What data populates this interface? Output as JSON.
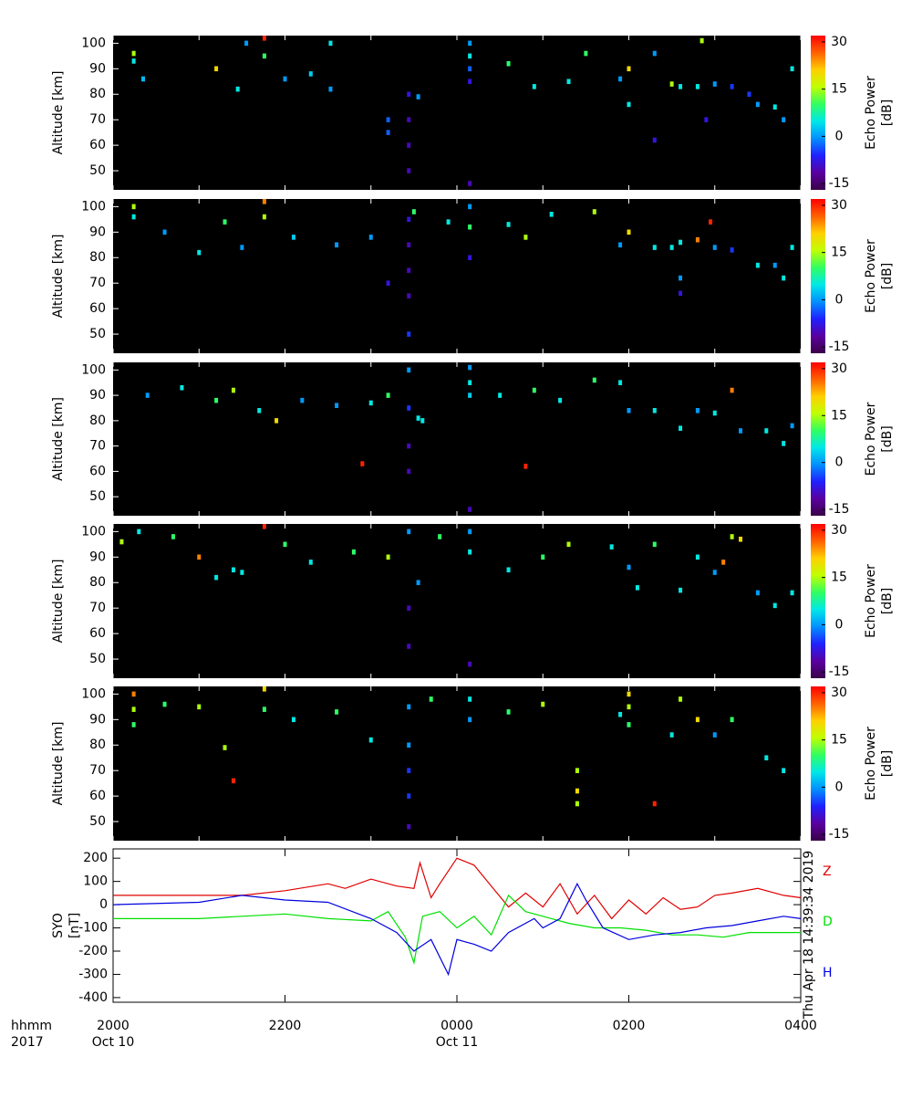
{
  "chart_data": [
    {
      "type": "heatmap",
      "ylabel": "Altitude [km]",
      "xlim": [
        20,
        28
      ],
      "xticks": [
        20,
        21,
        22,
        23,
        24,
        25,
        26,
        27,
        28
      ],
      "ylim": [
        42.5,
        103
      ],
      "yticks": [
        50,
        60,
        70,
        80,
        90,
        100
      ],
      "colorbar": {
        "label": [
          "Echo Power",
          "[dB]"
        ],
        "zlim": [
          -17,
          32
        ],
        "ticks": [
          30,
          15,
          0,
          -15
        ],
        "colormap": [
          "#3a0048",
          "#5a00a0",
          "#2020ff",
          "#0090ff",
          "#00e8e8",
          "#30ff60",
          "#c0ff00",
          "#ffd000",
          "#ff6000",
          "#ff0000"
        ]
      },
      "time": [
        20.24,
        20.24,
        20.35,
        21.2,
        21.55,
        21.76,
        21.76,
        21.45,
        22.0,
        22.3,
        22.53,
        22.53,
        23.44,
        23.44,
        23.44,
        23.44,
        23.2,
        23.2,
        23.55,
        24.15,
        24.15,
        24.15,
        24.15,
        24.15,
        24.6,
        24.9,
        25.5,
        25.3,
        25.9,
        26.0,
        26.0,
        26.5,
        26.6,
        26.8,
        27.0,
        27.2,
        27.5,
        27.7,
        27.8,
        26.9,
        26.3,
        27.9,
        26.85,
        26.3,
        27.4
      ],
      "altitude": [
        96,
        93,
        86,
        90,
        100,
        102,
        95,
        82,
        86,
        88,
        100,
        82,
        80,
        70,
        60,
        50,
        70,
        65,
        79,
        100,
        95,
        90,
        85,
        45,
        92,
        83,
        96,
        85,
        86,
        90,
        76,
        84,
        83,
        83,
        84,
        83,
        76,
        75,
        70,
        70,
        62,
        90,
        101,
        96,
        80
      ],
      "power": [
        15,
        5,
        2,
        20,
        0,
        30,
        10,
        5,
        0,
        3,
        5,
        0,
        -8,
        -10,
        -10,
        -10,
        -3,
        -3,
        0,
        0,
        5,
        -3,
        -8,
        -10,
        10,
        5,
        10,
        5,
        0,
        20,
        5,
        15,
        5,
        5,
        0,
        -5,
        0,
        5,
        0,
        -8,
        -8,
        5,
        15,
        0,
        -5
      ]
    },
    {
      "type": "heatmap",
      "ylabel": "Altitude [km]",
      "xlim": [
        20,
        28
      ],
      "xticks": [
        20,
        21,
        22,
        23,
        24,
        25,
        26,
        27,
        28
      ],
      "ylim": [
        42.5,
        103
      ],
      "yticks": [
        50,
        60,
        70,
        80,
        90,
        100
      ],
      "colorbar": {
        "label": [
          "Echo Power",
          "[dB]"
        ],
        "zlim": [
          -17,
          32
        ],
        "ticks": [
          30,
          15,
          0,
          -15
        ],
        "colormap": [
          "#3a0048",
          "#5a00a0",
          "#2020ff",
          "#0090ff",
          "#00e8e8",
          "#30ff60",
          "#c0ff00",
          "#ffd000",
          "#ff6000",
          "#ff0000"
        ]
      },
      "time": [
        20.24,
        20.24,
        20.6,
        21.0,
        21.3,
        21.76,
        21.76,
        21.5,
        22.1,
        22.6,
        23.0,
        23.44,
        23.44,
        23.44,
        23.44,
        23.44,
        23.2,
        23.5,
        23.9,
        24.15,
        24.15,
        24.15,
        24.6,
        24.8,
        25.1,
        25.6,
        25.9,
        26.0,
        26.3,
        26.5,
        26.6,
        26.8,
        26.95,
        27.0,
        27.2,
        27.5,
        27.7,
        27.8,
        26.6,
        26.6,
        27.9
      ],
      "altitude": [
        100,
        96,
        90,
        82,
        94,
        102,
        96,
        84,
        88,
        85,
        88,
        95,
        85,
        75,
        65,
        50,
        70,
        98,
        94,
        100,
        92,
        80,
        93,
        88,
        97,
        98,
        85,
        90,
        84,
        84,
        86,
        87,
        94,
        84,
        83,
        77,
        77,
        72,
        72,
        66,
        84
      ],
      "power": [
        15,
        5,
        0,
        5,
        10,
        25,
        15,
        0,
        3,
        0,
        0,
        -8,
        -10,
        -10,
        -10,
        -5,
        -8,
        10,
        5,
        0,
        10,
        -8,
        5,
        15,
        5,
        15,
        0,
        20,
        5,
        5,
        5,
        25,
        30,
        0,
        -5,
        5,
        0,
        5,
        0,
        -8,
        5
      ]
    },
    {
      "type": "heatmap",
      "ylabel": "Altitude [km]",
      "xlim": [
        20,
        28
      ],
      "xticks": [
        20,
        21,
        22,
        23,
        24,
        25,
        26,
        27,
        28
      ],
      "ylim": [
        42.5,
        103
      ],
      "yticks": [
        50,
        60,
        70,
        80,
        90,
        100
      ],
      "colorbar": {
        "label": [
          "Echo Power",
          "[dB]"
        ],
        "zlim": [
          -17,
          32
        ],
        "ticks": [
          30,
          15,
          0,
          -15
        ],
        "colormap": [
          "#3a0048",
          "#5a00a0",
          "#2020ff",
          "#0090ff",
          "#00e8e8",
          "#30ff60",
          "#c0ff00",
          "#ffd000",
          "#ff6000",
          "#ff0000"
        ]
      },
      "time": [
        20.4,
        20.8,
        21.2,
        21.4,
        21.7,
        21.9,
        22.2,
        22.6,
        23.0,
        23.2,
        23.44,
        23.44,
        23.44,
        23.44,
        23.55,
        23.6,
        24.15,
        24.15,
        24.15,
        24.15,
        24.5,
        24.9,
        25.2,
        25.6,
        25.9,
        26.0,
        26.3,
        26.6,
        26.8,
        27.0,
        27.2,
        27.3,
        27.6,
        27.8,
        27.9,
        22.9,
        24.8
      ],
      "altitude": [
        90,
        93,
        88,
        92,
        84,
        80,
        88,
        86,
        87,
        90,
        100,
        85,
        70,
        60,
        81,
        80,
        101,
        95,
        90,
        45,
        90,
        92,
        88,
        96,
        95,
        84,
        84,
        77,
        84,
        83,
        92,
        76,
        76,
        71,
        78,
        63,
        62
      ],
      "power": [
        0,
        5,
        10,
        15,
        5,
        20,
        0,
        0,
        5,
        10,
        0,
        -5,
        -10,
        -10,
        5,
        5,
        0,
        5,
        3,
        -10,
        5,
        10,
        5,
        10,
        5,
        0,
        5,
        5,
        0,
        5,
        25,
        0,
        5,
        5,
        0,
        30,
        30
      ]
    },
    {
      "type": "heatmap",
      "ylabel": "Altitude [km]",
      "xlim": [
        20,
        28
      ],
      "xticks": [
        20,
        21,
        22,
        23,
        24,
        25,
        26,
        27,
        28
      ],
      "ylim": [
        42.5,
        103
      ],
      "yticks": [
        50,
        60,
        70,
        80,
        90,
        100
      ],
      "colorbar": {
        "label": [
          "Echo Power",
          "[dB]"
        ],
        "zlim": [
          -17,
          32
        ],
        "ticks": [
          30,
          15,
          0,
          -15
        ],
        "colormap": [
          "#3a0048",
          "#5a00a0",
          "#2020ff",
          "#0090ff",
          "#00e8e8",
          "#30ff60",
          "#c0ff00",
          "#ffd000",
          "#ff6000",
          "#ff0000"
        ]
      },
      "time": [
        20.1,
        20.3,
        20.7,
        21.0,
        21.2,
        21.4,
        21.5,
        21.76,
        22.0,
        22.3,
        22.8,
        23.2,
        23.44,
        23.44,
        23.44,
        23.55,
        23.8,
        24.15,
        24.15,
        24.15,
        24.6,
        25.0,
        25.3,
        25.8,
        26.0,
        26.1,
        26.3,
        26.6,
        26.8,
        27.0,
        27.1,
        27.2,
        27.3,
        27.5,
        27.7,
        27.9
      ],
      "altitude": [
        96,
        100,
        98,
        90,
        82,
        85,
        84,
        102,
        95,
        88,
        92,
        90,
        70,
        55,
        100,
        80,
        98,
        100,
        92,
        48,
        85,
        90,
        95,
        94,
        86,
        78,
        95,
        77,
        90,
        84,
        88,
        98,
        97,
        76,
        71,
        76
      ],
      "power": [
        15,
        5,
        10,
        25,
        5,
        5,
        5,
        30,
        10,
        5,
        10,
        15,
        -10,
        -10,
        0,
        0,
        10,
        0,
        5,
        -10,
        5,
        10,
        15,
        5,
        0,
        5,
        10,
        5,
        5,
        0,
        25,
        15,
        20,
        0,
        5,
        5
      ]
    },
    {
      "type": "heatmap",
      "ylabel": "Altitude [km]",
      "xlim": [
        20,
        28
      ],
      "xticks": [
        20,
        21,
        22,
        23,
        24,
        25,
        26,
        27,
        28
      ],
      "ylim": [
        42.5,
        103
      ],
      "yticks": [
        50,
        60,
        70,
        80,
        90,
        100
      ],
      "colorbar": {
        "label": [
          "Echo Power",
          "[dB]"
        ],
        "zlim": [
          -17,
          32
        ],
        "ticks": [
          30,
          15,
          0,
          -15
        ],
        "colormap": [
          "#3a0048",
          "#5a00a0",
          "#2020ff",
          "#0090ff",
          "#00e8e8",
          "#30ff60",
          "#c0ff00",
          "#ffd000",
          "#ff6000",
          "#ff0000"
        ]
      },
      "time": [
        20.24,
        20.24,
        20.24,
        20.6,
        21.0,
        21.3,
        21.76,
        21.76,
        22.1,
        22.6,
        23.0,
        23.44,
        23.44,
        23.44,
        23.44,
        23.44,
        23.7,
        24.15,
        24.15,
        24.6,
        25.0,
        25.4,
        25.4,
        25.4,
        25.9,
        26.0,
        26.0,
        26.0,
        26.5,
        26.6,
        26.8,
        27.0,
        27.2,
        27.6,
        27.8,
        21.4,
        26.3
      ],
      "altitude": [
        100,
        94,
        88,
        96,
        95,
        79,
        102,
        94,
        90,
        93,
        82,
        95,
        80,
        70,
        60,
        48,
        98,
        98,
        90,
        93,
        96,
        70,
        62,
        57,
        92,
        100,
        95,
        88,
        84,
        98,
        90,
        84,
        90,
        75,
        70,
        66,
        57
      ],
      "power": [
        25,
        15,
        10,
        10,
        15,
        15,
        20,
        10,
        5,
        10,
        5,
        0,
        0,
        -5,
        -5,
        -10,
        10,
        5,
        0,
        10,
        15,
        15,
        20,
        15,
        5,
        20,
        15,
        10,
        5,
        15,
        20,
        0,
        10,
        5,
        5,
        30,
        30
      ]
    },
    {
      "type": "line",
      "ylabel": [
        "SYO",
        "[nT]"
      ],
      "xlim": [
        20,
        28
      ],
      "xticks": [
        {
          "value": 20,
          "label": "2000"
        },
        {
          "value": 22,
          "label": "2200"
        },
        {
          "value": 24,
          "label": "0000"
        },
        {
          "value": 26,
          "label": "0200"
        },
        {
          "value": 28,
          "label": "0400"
        }
      ],
      "date_ticks": [
        {
          "value": 20,
          "label": "Oct 10"
        },
        {
          "value": 24,
          "label": "Oct 11"
        }
      ],
      "axis_caption": [
        "hhmm",
        "2017"
      ],
      "timestamp": "Thu Apr 18 14:39:34 2019",
      "ylim": [
        -420,
        240
      ],
      "yticks": [
        200,
        100,
        0,
        -100,
        -200,
        -300,
        -400
      ],
      "series": [
        {
          "name": "Z",
          "color": "#e00000",
          "x": [
            20,
            21.5,
            22,
            22.5,
            22.7,
            23,
            23.3,
            23.5,
            23.57,
            23.7,
            23.8,
            24,
            24.2,
            24.4,
            24.6,
            24.8,
            25,
            25.2,
            25.4,
            25.6,
            25.8,
            26,
            26.2,
            26.4,
            26.6,
            26.8,
            27,
            27.2,
            27.5,
            27.8,
            28
          ],
          "values": [
            40,
            40,
            60,
            90,
            70,
            110,
            80,
            70,
            180,
            30,
            90,
            200,
            170,
            80,
            -10,
            50,
            -10,
            90,
            -40,
            40,
            -60,
            20,
            -40,
            30,
            -20,
            -10,
            40,
            50,
            70,
            40,
            30
          ]
        },
        {
          "name": "D",
          "color": "#00e000",
          "x": [
            20,
            21,
            21.5,
            22,
            22.5,
            23,
            23.2,
            23.4,
            23.5,
            23.6,
            23.8,
            24,
            24.2,
            24.4,
            24.6,
            24.8,
            25,
            25.3,
            25.6,
            25.9,
            26.2,
            26.5,
            26.8,
            27.1,
            27.4,
            27.7,
            28
          ],
          "values": [
            -60,
            -60,
            -50,
            -40,
            -60,
            -70,
            -30,
            -140,
            -250,
            -50,
            -30,
            -100,
            -50,
            -130,
            40,
            -30,
            -50,
            -80,
            -100,
            -100,
            -110,
            -130,
            -130,
            -140,
            -120,
            -120,
            -120
          ]
        },
        {
          "name": "H",
          "color": "#0000e0",
          "x": [
            20,
            21,
            21.5,
            22,
            22.5,
            23,
            23.3,
            23.5,
            23.7,
            23.9,
            24,
            24.2,
            24.4,
            24.6,
            24.9,
            25,
            25.2,
            25.4,
            25.5,
            25.7,
            26,
            26.3,
            26.6,
            26.9,
            27.2,
            27.5,
            27.8,
            28
          ],
          "values": [
            0,
            10,
            40,
            20,
            10,
            -60,
            -120,
            -200,
            -150,
            -300,
            -150,
            -170,
            -200,
            -120,
            -60,
            -100,
            -60,
            90,
            20,
            -100,
            -150,
            -130,
            -120,
            -100,
            -90,
            -70,
            -50,
            -60
          ]
        }
      ]
    }
  ]
}
